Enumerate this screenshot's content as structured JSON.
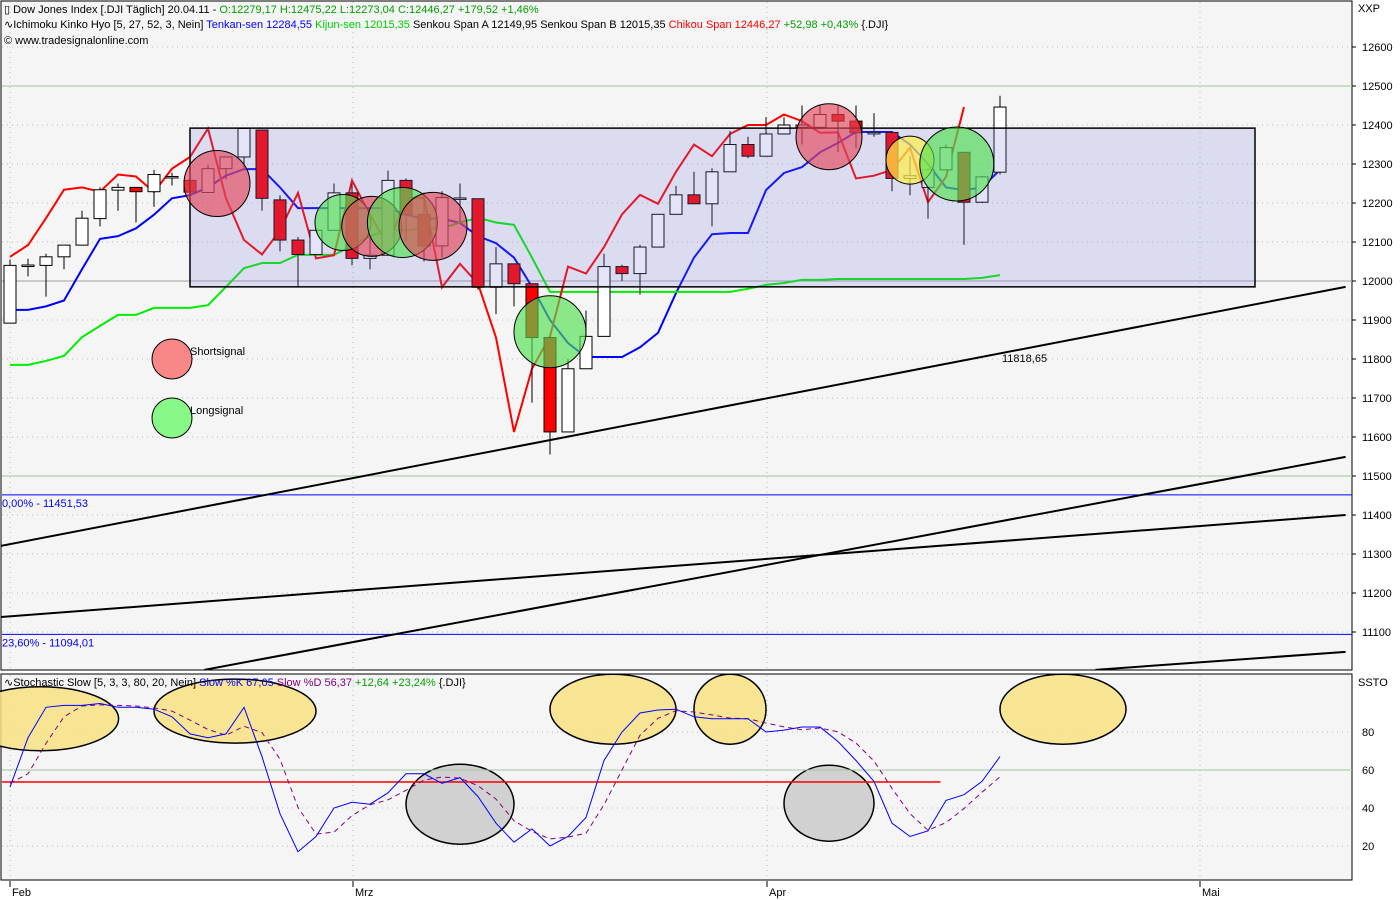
{
  "header": {
    "line1": {
      "icon": "candlestick-icon",
      "title": "Dow Jones Index [.DJI  Täglich] 20.04.11 - ",
      "ohl": "O:12279,17 H:12475,22 L:12273,04 ",
      "close": "C:12446,27 +179,52 +1,46%"
    },
    "line2": {
      "icon": "indicator-wave-icon",
      "name": "Ichimoku Kinko Hyo [5, 27, 52, 3, Nein] ",
      "tenkan": "Tenkan-sen 12284,55 ",
      "kijun": "Kijun-sen 12015,35 ",
      "senkou": "Senkou Span A 12149,95 Senkou Span B 12015,35 ",
      "chikou": "Chikou Span 12446,27 ",
      "change": "+52,98 +0,43% ",
      "symbol": "{.DJI}"
    },
    "line3": {
      "icon": "copyright-icon",
      "text": "www.tradesignalonline.com"
    }
  },
  "stoch_header": {
    "icon": "indicator-wave-icon",
    "name": "Stochastic Slow [5, 3, 3, 80, 20, Nein] ",
    "k": "Slow %K 67,05 ",
    "d": "Slow %D 56,37 ",
    "change": "+12,64 +23,24% ",
    "symbol": "{.DJI}"
  },
  "colors": {
    "up": "#ffffff",
    "down": "#ff0000",
    "tenkan": "#0000ff",
    "kijun": "#00ee00",
    "chikou": "#ff0000",
    "stoch_k": "#0000ff",
    "stoch_d": "#800080",
    "box": "#7878dc",
    "fib": "#0000ff"
  },
  "chart_data": [
    {
      "type": "candlestick",
      "title": "Dow Jones Index [.DJI  Täglich]",
      "y_axis_label": "XXP",
      "ylim": [
        11050,
        12650
      ],
      "y_ticks": [
        12600,
        12500,
        12400,
        12300,
        12200,
        12100,
        12000,
        11900,
        11800,
        11700,
        11600,
        11500,
        11400,
        11300,
        11200,
        11100
      ],
      "x_tick_labels": [
        "Feb",
        "Mrz",
        "Apr",
        "Mai"
      ],
      "grid": true,
      "ohlc": [
        [
          11892,
          12055,
          11892,
          12040
        ],
        [
          12038,
          12057,
          12012,
          12041
        ],
        [
          12040,
          12070,
          11960,
          12062
        ],
        [
          12062,
          12092,
          12030,
          12092
        ],
        [
          12092,
          12180,
          12092,
          12161
        ],
        [
          12160,
          12240,
          12140,
          12234
        ],
        [
          12233,
          12250,
          12180,
          12240
        ],
        [
          12240,
          12240,
          12150,
          12229
        ],
        [
          12229,
          12285,
          12190,
          12273
        ],
        [
          12266,
          12278,
          12245,
          12268
        ],
        [
          12258,
          12266,
          12226,
          12228
        ],
        [
          12227,
          12298,
          12227,
          12288
        ],
        [
          12288,
          12318,
          12260,
          12318
        ],
        [
          12318,
          12391,
          12290,
          12391
        ],
        [
          12387,
          12387,
          12180,
          12212
        ],
        [
          12208,
          12220,
          12076,
          12105
        ],
        [
          12105,
          12113,
          11983,
          12068
        ],
        [
          12068,
          12130,
          12068,
          12130
        ],
        [
          12130,
          12250,
          12130,
          12226
        ],
        [
          12226,
          12250,
          12040,
          12058
        ],
        [
          12058,
          12110,
          12030,
          12066
        ],
        [
          12066,
          12283,
          12066,
          12258
        ],
        [
          12258,
          12263,
          12102,
          12170
        ],
        [
          12170,
          12227,
          12050,
          12090
        ],
        [
          12090,
          12230,
          12060,
          12214
        ],
        [
          12213,
          12250,
          12150,
          12213
        ],
        [
          12211,
          12211,
          11978,
          11984
        ],
        [
          11984,
          12087,
          11915,
          12044
        ],
        [
          12044,
          12044,
          11935,
          11993
        ],
        [
          11993,
          11993,
          11688,
          11855
        ],
        [
          11855,
          11856,
          11555,
          11613
        ],
        [
          11613,
          11800,
          11613,
          11775
        ],
        [
          11775,
          11924,
          11775,
          11858
        ],
        [
          11858,
          12070,
          11858,
          12037
        ],
        [
          12037,
          12042,
          12000,
          12019
        ],
        [
          12019,
          12093,
          11965,
          12087
        ],
        [
          12087,
          12171,
          12087,
          12171
        ],
        [
          12171,
          12244,
          12171,
          12221
        ],
        [
          12221,
          12280,
          12197,
          12198
        ],
        [
          12198,
          12289,
          12140,
          12280
        ],
        [
          12280,
          12385,
          12280,
          12350
        ],
        [
          12350,
          12370,
          12315,
          12320
        ],
        [
          12320,
          12420,
          12320,
          12377
        ],
        [
          12377,
          12420,
          12378,
          12400
        ],
        [
          12394,
          12450,
          12350,
          12400
        ],
        [
          12394,
          12450,
          12390,
          12427
        ],
        [
          12427,
          12450,
          12330,
          12410
        ],
        [
          12410,
          12450,
          12340,
          12380
        ],
        [
          12381,
          12430,
          12370,
          12381
        ],
        [
          12381,
          12381,
          12230,
          12263
        ],
        [
          12263,
          12320,
          12220,
          12270
        ],
        [
          12240,
          12290,
          12160,
          12285
        ],
        [
          12285,
          12350,
          12285,
          12342
        ],
        [
          12330,
          12330,
          12093,
          12202
        ],
        [
          12202,
          12270,
          12200,
          12267
        ],
        [
          12279,
          12475,
          12273,
          12446
        ]
      ],
      "series": [
        {
          "name": "Tenkan-sen",
          "values": [
            11926,
            11926,
            11935,
            11950,
            12030,
            12108,
            12115,
            12135,
            12170,
            12212,
            12220,
            12240,
            12270,
            12287,
            12287,
            12240,
            12187,
            12187,
            12187,
            12187,
            12187,
            12187,
            12170,
            12160,
            12160,
            12149,
            12115,
            12097,
            12060,
            11985,
            11900,
            11841,
            11805,
            11805,
            11805,
            11830,
            11867,
            11969,
            12060,
            12120,
            12123,
            12123,
            12233,
            12277,
            12292,
            12330,
            12354,
            12382,
            12382,
            12382,
            12350,
            12300,
            12240,
            12233,
            12240,
            12285
          ]
        },
        {
          "name": "Kijun-sen",
          "values": [
            11785,
            11785,
            11795,
            11808,
            11856,
            11885,
            11913,
            11913,
            11931,
            11931,
            11931,
            11938,
            11985,
            12033,
            12046,
            12046,
            12067,
            12067,
            12067,
            12090,
            12115,
            12130,
            12130,
            12135,
            12135,
            12150,
            12162,
            12150,
            12144,
            12060,
            11972,
            11972,
            11972,
            11972,
            11972,
            11972,
            11972,
            11972,
            11972,
            11972,
            11972,
            11980,
            11990,
            11995,
            12003,
            12003,
            12005,
            12005,
            12005,
            12005,
            12005,
            12005,
            12005,
            12005,
            12008,
            12015
          ]
        },
        {
          "name": "Chikou Span",
          "values": [
            12062,
            12092,
            12161,
            12234,
            12240,
            12229,
            12273,
            12268,
            12228,
            12288,
            12318,
            12391,
            12212,
            12105,
            12068,
            12130,
            12226,
            12058,
            12066,
            12258,
            12170,
            12090,
            12214,
            12213,
            11984,
            12044,
            11993,
            11855,
            11613,
            11775,
            11858,
            12037,
            12019,
            12087,
            12171,
            12221,
            12198,
            12280,
            12350,
            12320,
            12377,
            12400,
            12400,
            12427,
            12410,
            12380,
            12381,
            12263,
            12270,
            12285,
            12342,
            12202,
            12267,
            12446
          ]
        }
      ],
      "range_box": {
        "top": 12392,
        "bottom": 11985,
        "from_index": 10,
        "to_index": 69
      },
      "horizontal_lines": [
        {
          "price": 12500,
          "color": "#a0c8a0"
        },
        {
          "price": 12000,
          "color": "#a0a0a0"
        },
        {
          "price": 11500,
          "color": "#a0c8a0"
        },
        {
          "price": 11451.53,
          "color": "#0000ff",
          "label": "0,00% - 11451,53"
        },
        {
          "price": 11094.01,
          "color": "#0000ff",
          "label": "23,60% - 11094,01"
        }
      ],
      "trendlines": [
        {
          "from": [
            -0.6,
            11320
          ],
          "to": [
            74.2,
            11985
          ],
          "label": "11818,65"
        },
        {
          "from": [
            -0.6,
            11138
          ],
          "to": [
            74.2,
            11400
          ]
        },
        {
          "from": [
            10.8,
            11003
          ],
          "to": [
            74.2,
            11549
          ]
        },
        {
          "from": [
            60.3,
            11003
          ],
          "to": [
            74.2,
            11049
          ]
        }
      ],
      "signals": [
        {
          "type": "short",
          "index": 11.5,
          "price": 12250
        },
        {
          "type": "long",
          "index": 18.5,
          "price": 12150
        },
        {
          "type": "short",
          "index": 20.1,
          "price": 12140
        },
        {
          "type": "long",
          "index": 21.8,
          "price": 12150
        },
        {
          "type": "short",
          "index": 23.5,
          "price": 12140
        },
        {
          "type": "long",
          "index": 30,
          "price": 11870
        },
        {
          "type": "short",
          "index": 45.5,
          "price": 12370
        },
        {
          "type": "neutral",
          "index": 50,
          "price": 12310
        },
        {
          "type": "long",
          "index": 52.6,
          "price": 12300
        }
      ],
      "legend": [
        {
          "type": "short",
          "label": "Shortsignal"
        },
        {
          "type": "long",
          "label": "Longsignal"
        }
      ]
    },
    {
      "type": "line",
      "title": "Stochastic Slow [5, 3, 3, 80, 20, Nein]",
      "y_axis_label": "SSTO",
      "ylim": [
        0,
        105
      ],
      "y_ticks": [
        80,
        60,
        40,
        20
      ],
      "grid": true,
      "series": [
        {
          "name": "Slow %K",
          "values": [
            51,
            77,
            93,
            94,
            94,
            95,
            93,
            93,
            92,
            88,
            79,
            77,
            79,
            93,
            67,
            37,
            17,
            25,
            40,
            43,
            42,
            48,
            58,
            58,
            53,
            56,
            46,
            32,
            22,
            29,
            20,
            25,
            35,
            65,
            80,
            90,
            91.6,
            92,
            88,
            87,
            87,
            87,
            80,
            81,
            82.6,
            82.6,
            75,
            65,
            54,
            32,
            25,
            28,
            44,
            47,
            54,
            67.05
          ]
        },
        {
          "name": "Slow %D",
          "values": [
            53,
            58,
            74,
            88,
            93.7,
            94.3,
            94,
            93.7,
            92.7,
            91,
            86.3,
            81.3,
            78.3,
            83,
            79.7,
            65.7,
            40.3,
            26.3,
            27.3,
            36,
            41.7,
            44.3,
            49.3,
            54.7,
            56.3,
            55.7,
            51.7,
            44.7,
            33.3,
            27.7,
            23.7,
            24.7,
            26.7,
            41.7,
            60,
            78.3,
            87.2,
            91.2,
            90.5,
            89,
            87.3,
            87,
            84.7,
            82.7,
            81.2,
            82.1,
            80.1,
            74.2,
            64.7,
            50.3,
            37,
            28.3,
            32.3,
            39.7,
            48.3,
            56.37
          ]
        }
      ],
      "horizontal_lines": [
        {
          "value": 60,
          "color": "#a0c8a0"
        },
        {
          "value": 53.7,
          "color": "#ff0000",
          "to_index": 51.7
        }
      ],
      "zones": [
        {
          "type": "overbought",
          "index": 1.7,
          "value": 87
        },
        {
          "type": "overbought",
          "index": 12.5,
          "value": 91
        },
        {
          "type": "overbought",
          "index": 33.5,
          "value": 92
        },
        {
          "type": "overbought",
          "index": 40,
          "value": 92
        },
        {
          "type": "overbought",
          "index": 58.5,
          "value": 92
        },
        {
          "type": "oversold",
          "index": 25,
          "value": 42
        },
        {
          "type": "oversold",
          "index": 45.5,
          "value": 42.5
        }
      ]
    }
  ]
}
